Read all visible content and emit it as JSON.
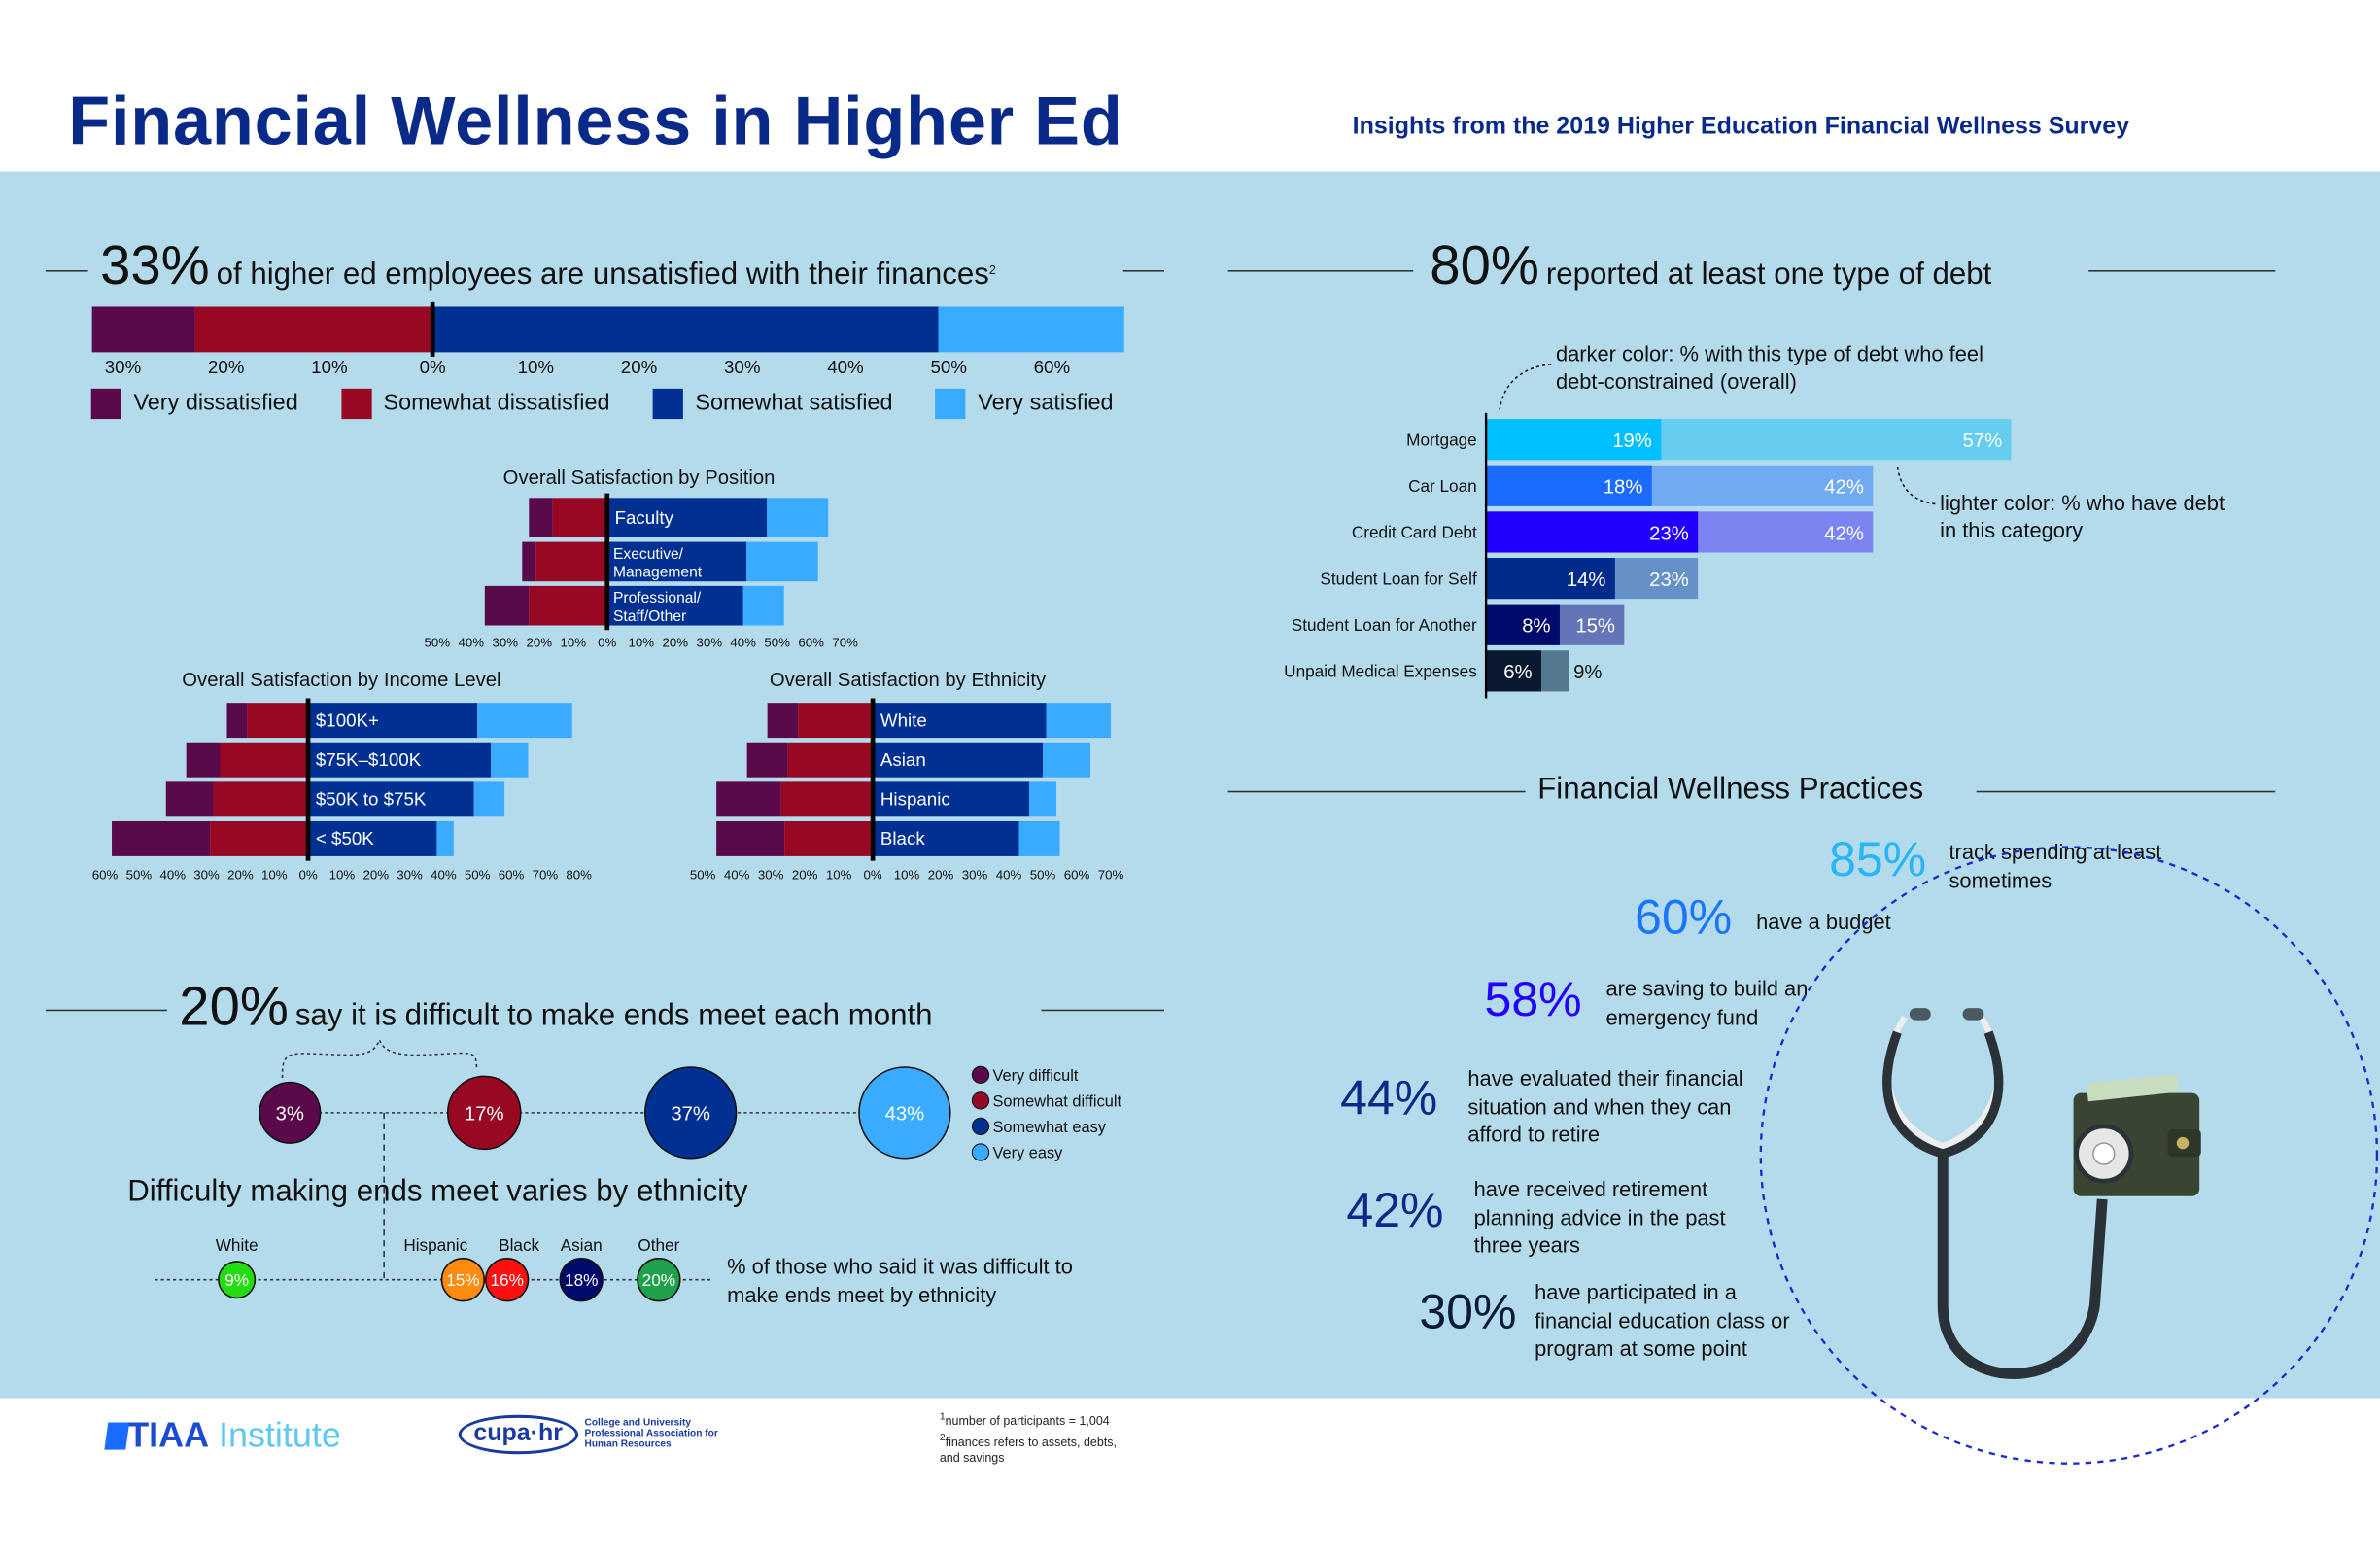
{
  "header": {
    "title": "Financial Wellness in Higher Ed",
    "subtitle": "Insights from the 2019 Higher Education Financial Wellness Survey"
  },
  "colors": {
    "very_dissatisfied": "#5a0a4a",
    "somewhat_dissatisfied": "#990822",
    "somewhat_satisfied": "#003092",
    "very_satisfied": "#3aabff",
    "title_blue": "#0a2a8a",
    "background": "#b3dbeb"
  },
  "satisfaction": {
    "stat": "33%",
    "headline": "of higher ed employees are unsatisfied with their finances",
    "footnote_mark": "2",
    "legend": [
      "Very dissatisfied",
      "Somewhat dissatisfied",
      "Somewhat satisfied",
      "Very satisfied"
    ]
  },
  "chart_data": [
    {
      "type": "bar",
      "orientation": "horizontal-diverging",
      "categories": [
        "All employees"
      ],
      "series": [
        {
          "name": "Very dissatisfied",
          "values": [
            10
          ]
        },
        {
          "name": "Somewhat dissatisfied",
          "values": [
            23
          ]
        },
        {
          "name": "Somewhat satisfied",
          "values": [
            49
          ]
        },
        {
          "name": "Very satisfied",
          "values": [
            18
          ]
        }
      ],
      "tick_labels": [
        "30%",
        "20%",
        "10%",
        "0%",
        "10%",
        "20%",
        "30%",
        "40%",
        "50%",
        "60%"
      ],
      "xlim": [
        -33,
        67
      ],
      "legend": "bottom"
    },
    {
      "type": "bar",
      "orientation": "horizontal-diverging",
      "title": "Overall Satisfaction by Position",
      "categories": [
        "Faculty",
        "Executive/ Management",
        "Professional/ Staff/Other"
      ],
      "series": [
        {
          "name": "Very dissatisfied",
          "values": [
            7,
            4,
            13
          ]
        },
        {
          "name": "Somewhat dissatisfied",
          "values": [
            16,
            21,
            23
          ]
        },
        {
          "name": "Somewhat satisfied",
          "values": [
            47,
            41,
            40
          ]
        },
        {
          "name": "Very satisfied",
          "values": [
            18,
            21,
            12
          ]
        }
      ],
      "tick_labels": [
        "50%",
        "40%",
        "30%",
        "20%",
        "10%",
        "0%",
        "10%",
        "20%",
        "30%",
        "40%",
        "50%",
        "60%",
        "70%"
      ],
      "xlim": [
        -50,
        70
      ]
    },
    {
      "type": "bar",
      "orientation": "horizontal-diverging",
      "title": "Overall Satisfaction by Income Level",
      "categories": [
        "$100K+",
        "$75K–$100K",
        "$50K to $75K",
        "< $50K"
      ],
      "series": [
        {
          "name": "Very dissatisfied",
          "values": [
            6,
            10,
            14,
            29
          ]
        },
        {
          "name": "Somewhat dissatisfied",
          "values": [
            18,
            26,
            28,
            29
          ]
        },
        {
          "name": "Somewhat satisfied",
          "values": [
            50,
            54,
            49,
            38
          ]
        },
        {
          "name": "Very satisfied",
          "values": [
            28,
            11,
            9,
            5
          ]
        }
      ],
      "tick_labels": [
        "60%",
        "50%",
        "40%",
        "30%",
        "20%",
        "10%",
        "0%",
        "10%",
        "20%",
        "30%",
        "40%",
        "50%",
        "60%",
        "70%",
        "80%"
      ],
      "xlim": [
        -60,
        80
      ]
    },
    {
      "type": "bar",
      "orientation": "horizontal-diverging",
      "title": "Overall Satisfaction by Ethnicity",
      "categories": [
        "White",
        "Asian",
        "Hispanic",
        "Black"
      ],
      "series": [
        {
          "name": "Very dissatisfied",
          "values": [
            9,
            12,
            19,
            20
          ]
        },
        {
          "name": "Somewhat dissatisfied",
          "values": [
            22,
            25,
            27,
            26
          ]
        },
        {
          "name": "Somewhat satisfied",
          "values": [
            51,
            50,
            46,
            43
          ]
        },
        {
          "name": "Very satisfied",
          "values": [
            19,
            14,
            8,
            12
          ]
        }
      ],
      "tick_labels": [
        "50%",
        "40%",
        "30%",
        "20%",
        "10%",
        "0%",
        "10%",
        "20%",
        "30%",
        "40%",
        "50%",
        "60%",
        "70%"
      ],
      "xlim": [
        -50,
        70
      ]
    },
    {
      "type": "bar",
      "orientation": "horizontal-overlay",
      "categories": [
        "Mortgage",
        "Car Loan",
        "Credit Card Debt",
        "Student Loan for Self",
        "Student Loan for Another",
        "Unpaid Medical Expenses"
      ],
      "series": [
        {
          "name": "darker color: % with this type of debt who feel debt-constrained (overall)",
          "values": [
            19,
            18,
            23,
            14,
            8,
            6
          ],
          "colors": [
            "#00bfff",
            "#1a6bff",
            "#2200ff",
            "#002b8c",
            "#000a6b",
            "#0a1830"
          ]
        },
        {
          "name": "lighter color: % who have debt in this category",
          "values": [
            57,
            42,
            42,
            23,
            15,
            9
          ],
          "colors": [
            "#66ccf0",
            "#70aaf0",
            "#7b84f0",
            "#6690c8",
            "#6474b8",
            "#537890"
          ]
        }
      ],
      "data_labels": [
        "19%",
        "57%",
        "18%",
        "42%",
        "23%",
        "42%",
        "14%",
        "23%",
        "8%",
        "15%",
        "6%",
        "9%"
      ]
    },
    {
      "type": "scatter",
      "title": "say it is difficult to make ends meet each month",
      "categories": [
        "Very difficult",
        "Somewhat difficult",
        "Somewhat easy",
        "Very easy"
      ],
      "values": [
        3,
        17,
        37,
        43
      ],
      "labels": [
        "3%",
        "17%",
        "37%",
        "43%"
      ],
      "colors": [
        "#5a0a4a",
        "#990822",
        "#003092",
        "#3aabff"
      ],
      "legend": "right"
    },
    {
      "type": "scatter",
      "title": "Difficulty making ends meet varies by ethnicity",
      "categories": [
        "White",
        "Hispanic",
        "Black",
        "Asian",
        "Other"
      ],
      "values": [
        9,
        15,
        16,
        18,
        20
      ],
      "labels": [
        "9%",
        "15%",
        "16%",
        "18%",
        "20%"
      ],
      "colors": [
        "#22dd11",
        "#ff8a10",
        "#ff1010",
        "#000a6b",
        "#1fa04a"
      ],
      "annotation": "% of those who said it was difficult to make ends meet by ethnicity"
    }
  ],
  "debt": {
    "stat": "80%",
    "headline": "reported at least one type of debt",
    "note_dark": "darker color: % with this type of debt who feel debt-constrained (overall)",
    "note_light": "lighter color: % who have debt in this category"
  },
  "ends_meet": {
    "stat": "20%",
    "headline": "say it is difficult to make ends meet each month",
    "legend": [
      "Very difficult",
      "Somewhat difficult",
      "Somewhat easy",
      "Very easy"
    ],
    "sub_heading": "Difficulty making ends meet varies by ethnicity",
    "annotation": "% of those who said it was difficult to make ends meet by ethnicity"
  },
  "practices": {
    "heading": "Financial Wellness Practices",
    "items": [
      {
        "pct": "85%",
        "text": "track spending at least sometimes",
        "color": "#29b6f6"
      },
      {
        "pct": "60%",
        "text": "have a budget",
        "color": "#1a75ff"
      },
      {
        "pct": "58%",
        "text": "are saving to build an emergency fund",
        "color": "#2200ff"
      },
      {
        "pct": "44%",
        "text": "have evaluated their financial situation and when they can afford to retire",
        "color": "#0a2a8a"
      },
      {
        "pct": "42%",
        "text": "have received retirement planning advice in the past three years",
        "color": "#0a2a8a"
      },
      {
        "pct": "30%",
        "text": "have participated in a financial education class or program at some point",
        "color": "#0b1a3a"
      }
    ]
  },
  "footer": {
    "logo_tiaa": "TIAA Institute",
    "logo_cupa": "cupa-hr",
    "logo_cupa_tagline": "College and University Professional Association for Human Resources",
    "footnote1": "number of participants = 1,004",
    "footnote2": "finances refers to assets, debts, and savings"
  }
}
